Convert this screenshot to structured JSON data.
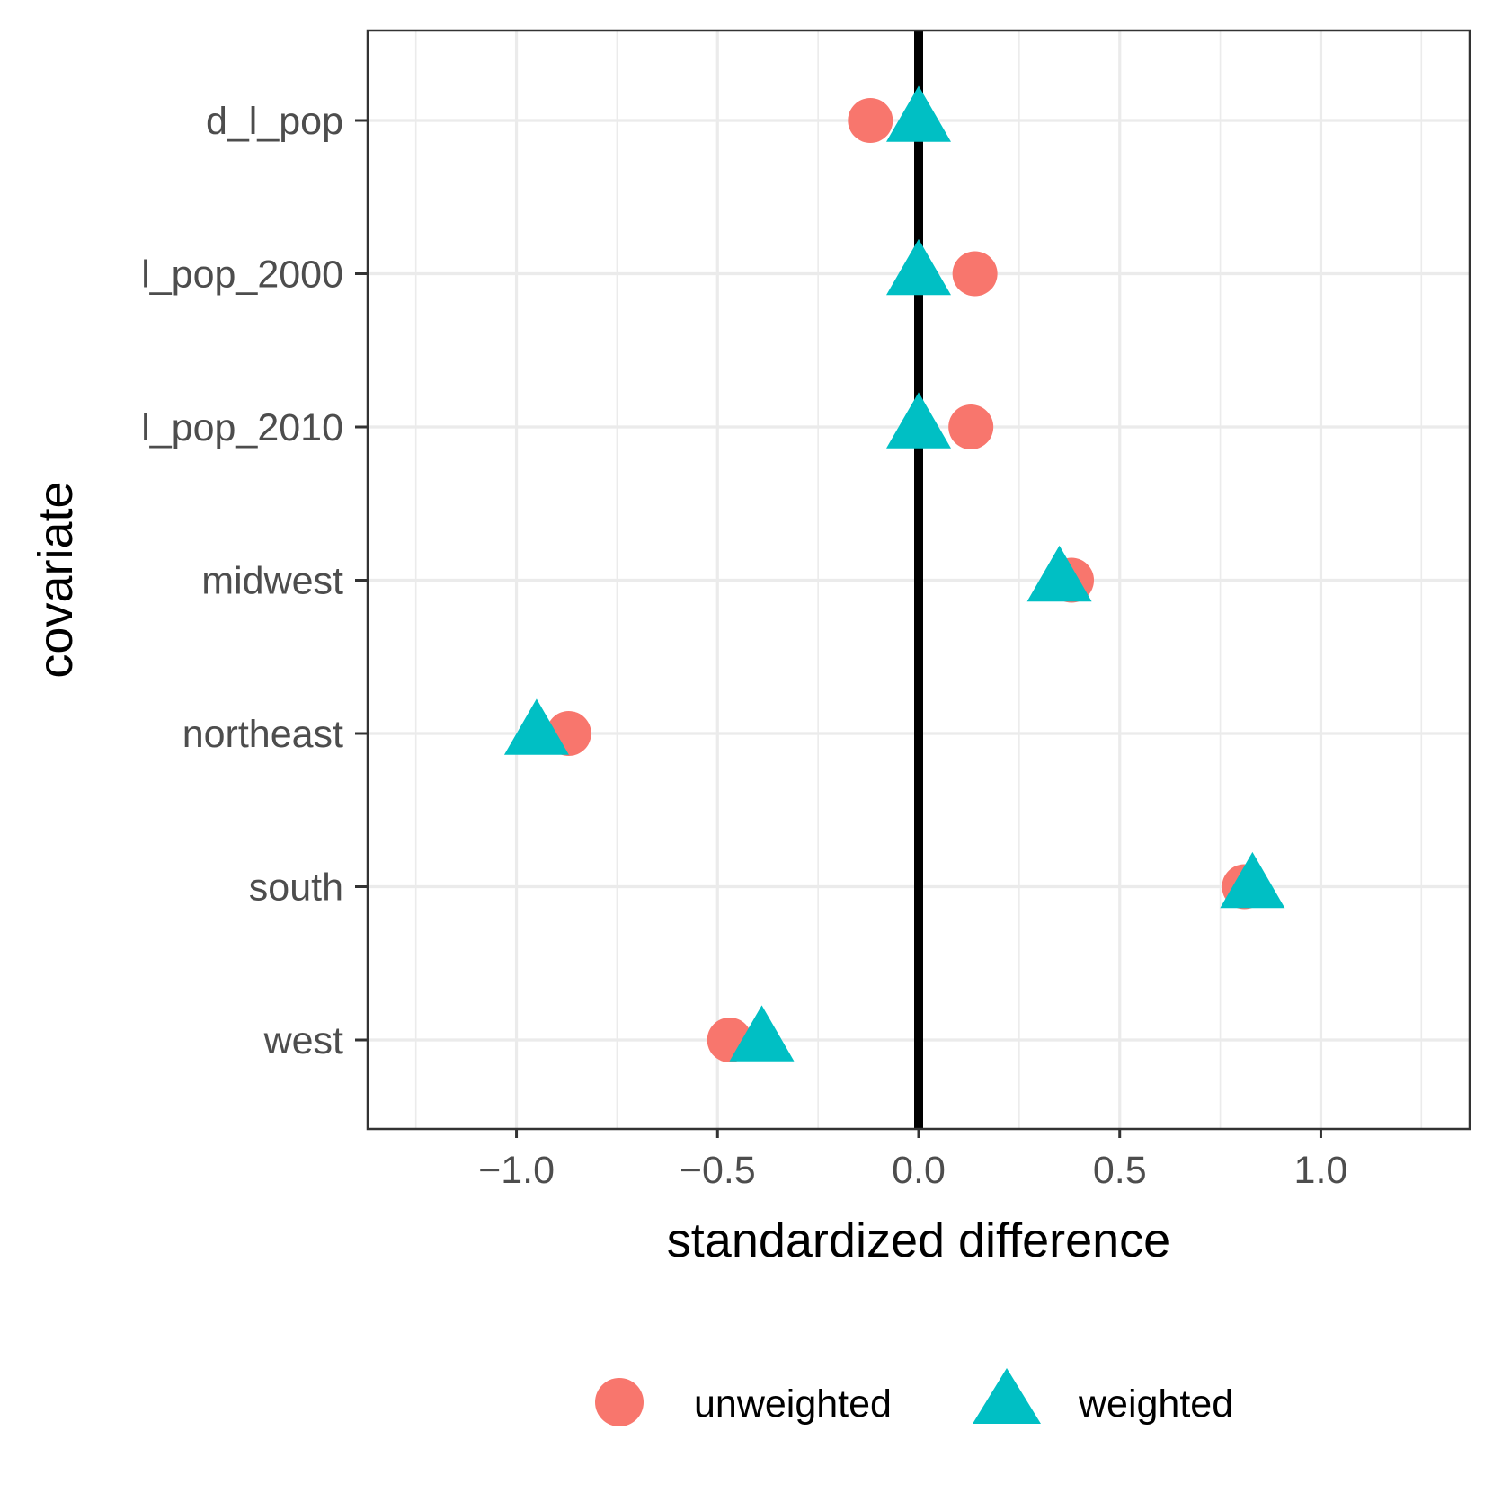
{
  "chart_data": {
    "type": "scatter",
    "title": "",
    "xlabel": "standardized difference",
    "ylabel": "covariate",
    "xlim": [
      -1.37,
      1.37
    ],
    "x_ticks": [
      -1.0,
      -0.5,
      0.0,
      0.5,
      1.0
    ],
    "x_tick_labels": [
      "−1.0",
      "−0.5",
      "0.0",
      "0.5",
      "1.0"
    ],
    "categories": [
      "d_l_pop",
      "l_pop_2000",
      "l_pop_2010",
      "midwest",
      "northeast",
      "south",
      "west"
    ],
    "reference_line_x": 0,
    "grid": true,
    "legend_position": "bottom",
    "series": [
      {
        "name": "unweighted",
        "shape": "circle",
        "color": "#F8766D",
        "values": [
          -0.12,
          0.14,
          0.13,
          0.38,
          -0.87,
          0.81,
          -0.47
        ]
      },
      {
        "name": "weighted",
        "shape": "triangle",
        "color": "#00BFC4",
        "values": [
          0.0,
          0.0,
          0.0,
          0.35,
          -0.95,
          0.83,
          -0.39
        ]
      }
    ]
  }
}
